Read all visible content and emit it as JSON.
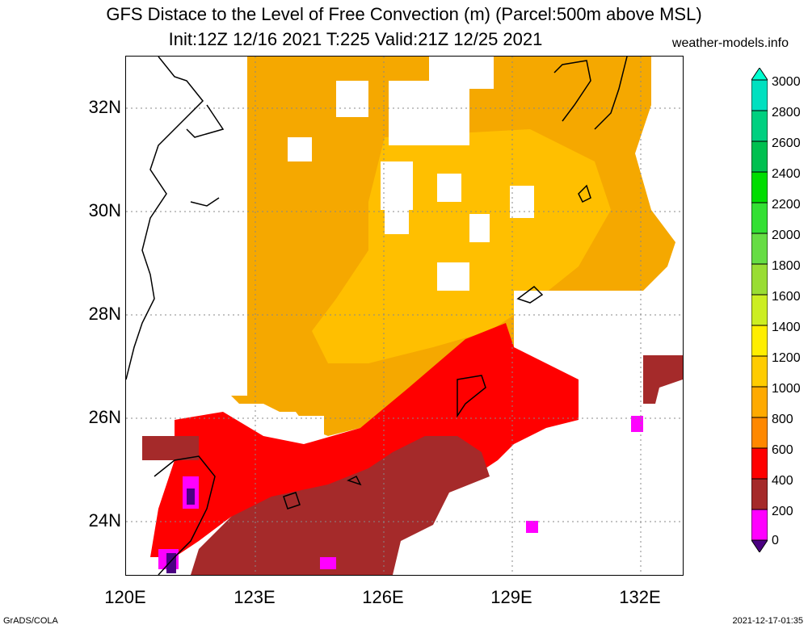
{
  "title_line1": "GFS Distace to the Level of Free Convection (m) (Parcel:500m above MSL)",
  "title_line2": "Init:12Z 12/16 2021 T:225 Valid:21Z 12/25 2021",
  "site": "weather-models.info",
  "footer_left": "GrADS/COLA",
  "footer_right": "2021-12-17-01:35",
  "lat_labels": [
    "32N",
    "30N",
    "28N",
    "26N",
    "24N"
  ],
  "lon_labels": [
    "120E",
    "123E",
    "126E",
    "129E",
    "132E"
  ],
  "colorbar_labels": [
    "3000",
    "2800",
    "2600",
    "2400",
    "2200",
    "2000",
    "1800",
    "1600",
    "1400",
    "1200",
    "1000",
    "800",
    "600",
    "400",
    "200",
    "0"
  ],
  "colors": {
    "orange": "#f5a800",
    "light_orange": "#ffc800",
    "red": "#ff0000",
    "brown": "#a52a2a",
    "magenta": "#ff00ff",
    "purple": "#4b0082"
  }
}
